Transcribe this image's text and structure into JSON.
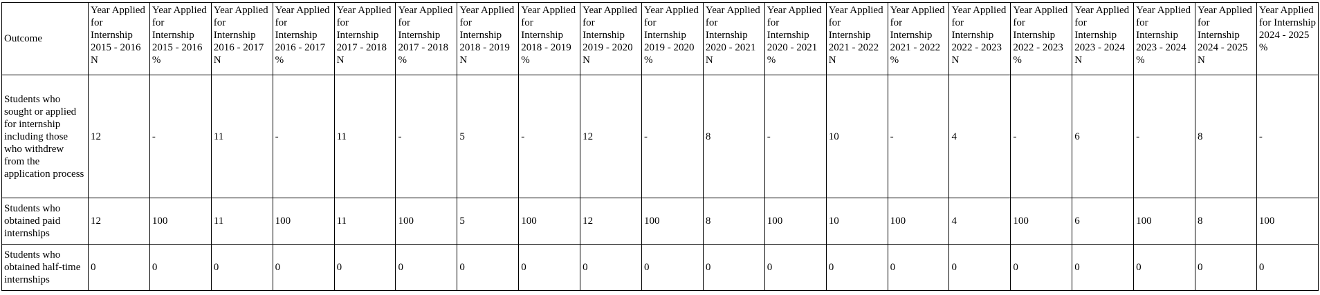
{
  "table": {
    "header": [
      "Outcome",
      "Year Applied for Internship 2015 - 2016 N",
      "Year Applied for Internship 2015 - 2016 %",
      "Year Applied for Internship 2016 - 2017 N",
      "Year Applied for Internship 2016 - 2017 %",
      "Year Applied for Internship 2017 - 2018 N",
      "Year Applied for Internship 2017 - 2018 %",
      "Year Applied for Internship 2018 - 2019 N",
      "Year Applied for Internship 2018 - 2019 %",
      "Year Applied for Internship 2019 - 2020 N",
      "Year Applied for Internship 2019 - 2020 %",
      "Year Applied for Internship 2020 - 2021 N",
      "Year Applied for Internship 2020 - 2021 %",
      "Year Applied for Internship 2021 - 2022 N",
      "Year Applied for Internship 2021 - 2022 %",
      "Year Applied for Internship 2022 - 2023 N",
      "Year Applied for Internship 2022 - 2023 %",
      "Year Applied for Internship 2023 - 2024 N",
      "Year Applied for Internship 2023 - 2024 %",
      "Year Applied for Internship 2024 - 2025 N",
      "Year Applied for Internship 2024 - 2025 %"
    ],
    "rows": [
      [
        "Students who sought or applied for internship including those who withdrew from the application process",
        12,
        "-",
        11,
        "-",
        11,
        "-",
        5,
        "-",
        12,
        "-",
        8,
        "-",
        10,
        "-",
        4,
        "-",
        6,
        "-",
        8,
        "-"
      ],
      [
        "Students who obtained paid internships",
        12,
        100,
        11,
        100,
        11,
        100,
        5,
        100,
        12,
        100,
        8,
        100,
        10,
        100,
        4,
        100,
        6,
        100,
        8,
        100
      ],
      [
        "Students who obtained half-time internships",
        0,
        0,
        0,
        0,
        0,
        0,
        0,
        0,
        0,
        0,
        0,
        0,
        0,
        0,
        0,
        0,
        0,
        0,
        0,
        0
      ]
    ]
  }
}
